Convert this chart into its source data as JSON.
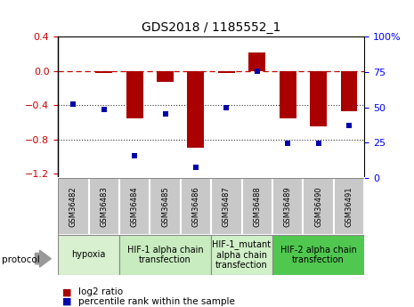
{
  "title": "GDS2018 / 1185552_1",
  "samples": [
    "GSM36482",
    "GSM36483",
    "GSM36484",
    "GSM36485",
    "GSM36486",
    "GSM36487",
    "GSM36488",
    "GSM36489",
    "GSM36490",
    "GSM36491"
  ],
  "log2_ratio": [
    0.0,
    -0.02,
    -0.55,
    -0.13,
    -0.9,
    -0.02,
    0.22,
    -0.55,
    -0.65,
    -0.47
  ],
  "percentile": [
    51,
    47,
    13,
    44,
    5,
    48,
    75,
    22,
    22,
    35
  ],
  "ylim_left": [
    -1.25,
    0.4
  ],
  "ylim_right": [
    0,
    100
  ],
  "yticks_left": [
    -1.2,
    -0.8,
    -0.4,
    0.0,
    0.4
  ],
  "yticks_right": [
    0,
    25,
    50,
    75,
    100
  ],
  "hlines_dotted": [
    -0.4,
    -0.8
  ],
  "groups": [
    {
      "label": "hypoxia",
      "start": 0,
      "end": 2,
      "color": "#d8f0d0"
    },
    {
      "label": "HIF-1 alpha chain\ntransfection",
      "start": 2,
      "end": 5,
      "color": "#c8ecc0"
    },
    {
      "label": "HIF-1_mutant\nalpha chain\ntransfection",
      "start": 5,
      "end": 7,
      "color": "#d0f0c8"
    },
    {
      "label": "HIF-2 alpha chain\ntransfection",
      "start": 7,
      "end": 10,
      "color": "#50c850"
    }
  ],
  "bar_color": "#AA0000",
  "dot_color": "#0000AA",
  "ref_line_color": "#CC0000",
  "hline_color": "#333333",
  "sample_box_color": "#c8c8c8",
  "legend_bar_label": "log2 ratio",
  "legend_dot_label": "percentile rank within the sample",
  "protocol_label": "protocol",
  "title_fontsize": 10,
  "tick_fontsize": 8,
  "sample_fontsize": 6,
  "group_fontsize": 7
}
